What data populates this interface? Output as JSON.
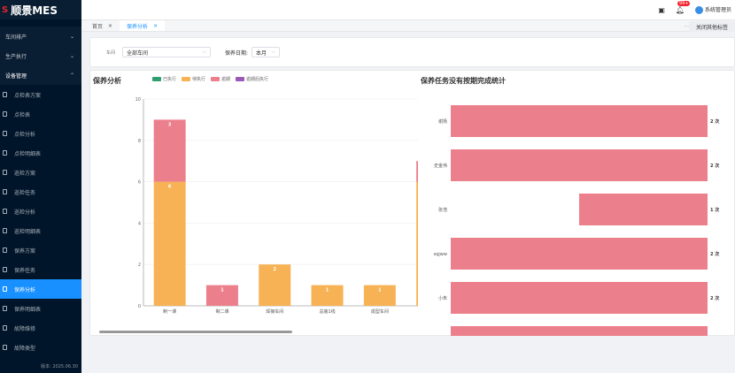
{
  "app": {
    "logo_mark": "S",
    "title": "顺景MES",
    "version": "版本: 2025.06.30"
  },
  "sidebar": {
    "groups": [
      {
        "label": "车间排产"
      },
      {
        "label": "生产执行"
      },
      {
        "label": "设备管理"
      }
    ],
    "items": [
      {
        "label": "点检表方案"
      },
      {
        "label": "点检表"
      },
      {
        "label": "点检分析"
      },
      {
        "label": "点检明细表"
      },
      {
        "label": "巡检方案"
      },
      {
        "label": "巡检任务"
      },
      {
        "label": "巡检分析"
      },
      {
        "label": "巡检明细表"
      },
      {
        "label": "保养方案"
      },
      {
        "label": "保养任务"
      },
      {
        "label": "保养分析",
        "active": true
      },
      {
        "label": "保养明细表"
      },
      {
        "label": "故障维修"
      },
      {
        "label": "故障类型"
      }
    ]
  },
  "topbar": {
    "notification_count": "99+",
    "user": "系统管理员"
  },
  "tabs": [
    {
      "label": "首页"
    },
    {
      "label": "保养分析",
      "active": true
    }
  ],
  "tabs_more": "...",
  "close_others": "关闭其他标签",
  "filter": {
    "workshop_label": "车间",
    "workshop_value": "全部车间",
    "date_label": "保养日期:",
    "date_value": "本月"
  },
  "colors": {
    "executed": "#2e9e6e",
    "pending": "#f7b255",
    "overdue": "#ec7f8c",
    "overdue_executed": "#9b59b6",
    "accent": "#1890ff"
  },
  "chart_data": [
    {
      "type": "bar",
      "stacked": true,
      "title": "保养分析",
      "legend": [
        "已执行",
        "待执行",
        "逾期",
        "逾期后执行"
      ],
      "legend_position": "top",
      "categories": [
        "制一课",
        "制二课",
        "焊接车间",
        "总装1线",
        "成型车间",
        "…"
      ],
      "ylim": [
        0,
        10
      ],
      "yticks": [
        0,
        2,
        4,
        6,
        8,
        10
      ],
      "grid": true,
      "series": [
        {
          "name": "已执行",
          "values": [
            0,
            0,
            0,
            0,
            0,
            0
          ]
        },
        {
          "name": "待执行",
          "values": [
            6,
            0,
            2,
            1,
            1,
            6
          ]
        },
        {
          "name": "逾期",
          "values": [
            3,
            1,
            0,
            0,
            0,
            1
          ]
        },
        {
          "name": "逾期后执行",
          "values": [
            0,
            0,
            0,
            0,
            0,
            0
          ]
        }
      ]
    },
    {
      "type": "bar",
      "orientation": "horizontal",
      "title": "保养任务没有按期完成统计",
      "unit": "次",
      "categories": [
        "谢扬",
        "史金伟",
        "张浩",
        "sqjww",
        "小朱",
        "…"
      ],
      "values": [
        2,
        2,
        1,
        2,
        2,
        2
      ],
      "xlim": [
        0,
        2
      ]
    }
  ]
}
